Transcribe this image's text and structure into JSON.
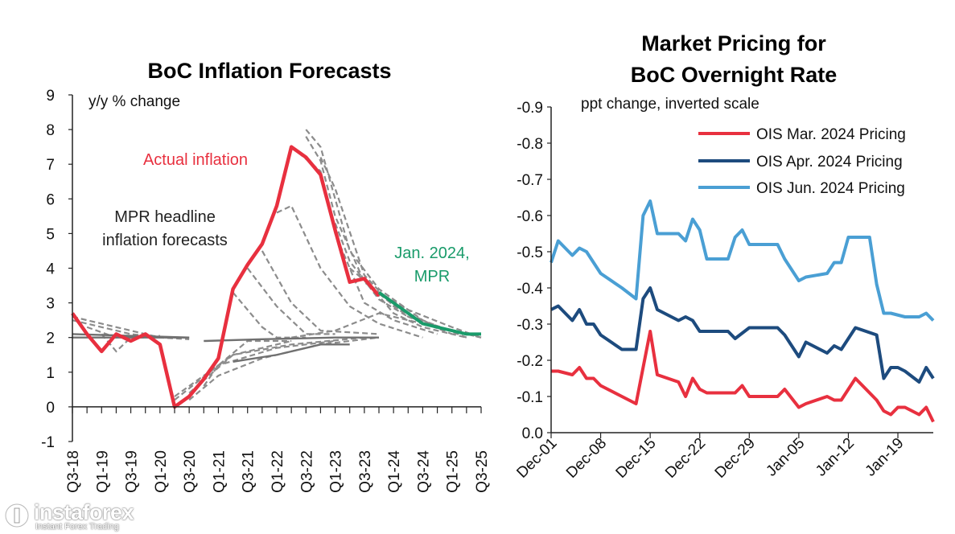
{
  "left_chart_data": {
    "type": "line",
    "title": "BoC Inflation Forecasts",
    "ylabel": "y/y % change",
    "ylim": [
      -1,
      9
    ],
    "yticks": [
      -1,
      0,
      1,
      2,
      3,
      4,
      5,
      6,
      7,
      8,
      9
    ],
    "x_labels": [
      "Q3-18",
      "Q1-19",
      "Q3-19",
      "Q1-20",
      "Q3-20",
      "Q1-21",
      "Q3-21",
      "Q1-22",
      "Q3-22",
      "Q1-23",
      "Q3-23",
      "Q1-24",
      "Q3-24",
      "Q1-25",
      "Q3-25"
    ],
    "annotations": {
      "actual": "Actual inflation",
      "mpr_line1": "MPR headline",
      "mpr_line2": "inflation forecasts",
      "jan_line1": "Jan. 2024,",
      "jan_line2": "MPR"
    },
    "colors": {
      "actual": "#e8303f",
      "jan_mpr": "#199b6a",
      "forecasts": "#8c8c8c",
      "flat": "#707070"
    },
    "actual_inflation": [
      [
        0,
        2.7
      ],
      [
        1,
        2.1
      ],
      [
        2,
        1.6
      ],
      [
        3,
        2.1
      ],
      [
        4,
        1.9
      ],
      [
        5,
        2.1
      ],
      [
        6,
        1.8
      ],
      [
        7,
        0.0
      ],
      [
        8,
        0.3
      ],
      [
        9,
        0.8
      ],
      [
        10,
        1.4
      ],
      [
        11,
        3.4
      ],
      [
        12,
        4.1
      ],
      [
        13,
        4.7
      ],
      [
        14,
        5.8
      ],
      [
        15,
        7.5
      ],
      [
        16,
        7.2
      ],
      [
        17,
        6.7
      ],
      [
        18,
        5.1
      ],
      [
        19,
        3.6
      ],
      [
        20,
        3.7
      ],
      [
        21,
        3.2
      ]
    ],
    "jan_2024_mpr": [
      [
        21,
        3.3
      ],
      [
        22,
        3.0
      ],
      [
        23,
        2.7
      ],
      [
        24,
        2.4
      ],
      [
        25,
        2.3
      ],
      [
        26,
        2.2
      ],
      [
        27,
        2.1
      ],
      [
        28,
        2.1
      ]
    ],
    "mpr_forecasts": [
      [
        [
          0,
          2.6
        ],
        [
          2,
          2.4
        ],
        [
          4,
          2.2
        ],
        [
          6,
          2.0
        ],
        [
          8,
          1.95
        ]
      ],
      [
        [
          0,
          2.5
        ],
        [
          2,
          2.3
        ],
        [
          4,
          2.1
        ],
        [
          6,
          2.0
        ]
      ],
      [
        [
          1,
          2.3
        ],
        [
          3,
          2.0
        ],
        [
          5,
          2.0
        ],
        [
          8,
          2.0
        ]
      ],
      [
        [
          2,
          2.1
        ],
        [
          3,
          1.6
        ],
        [
          4,
          2.0
        ],
        [
          6,
          2.05
        ]
      ],
      [
        [
          7,
          0.3
        ],
        [
          9,
          0.9
        ],
        [
          11,
          1.5
        ],
        [
          15,
          1.9
        ]
      ],
      [
        [
          7,
          0.2
        ],
        [
          10,
          1.2
        ],
        [
          14,
          1.7
        ],
        [
          18,
          1.9
        ]
      ],
      [
        [
          8,
          0.2
        ],
        [
          10,
          0.9
        ],
        [
          13,
          1.4
        ],
        [
          17,
          1.8
        ],
        [
          21,
          2.0
        ]
      ],
      [
        [
          8,
          0.4
        ],
        [
          11,
          1.5
        ],
        [
          15,
          1.8
        ],
        [
          20,
          2.0
        ]
      ],
      [
        [
          9,
          0.6
        ],
        [
          10,
          1.2
        ],
        [
          12,
          1.9
        ],
        [
          15,
          1.9
        ]
      ],
      [
        [
          11,
          3.3
        ],
        [
          13,
          2.3
        ],
        [
          14,
          2.0
        ],
        [
          16,
          2.0
        ]
      ],
      [
        [
          12,
          4.0
        ],
        [
          14,
          2.9
        ],
        [
          16,
          2.1
        ],
        [
          18,
          2.1
        ]
      ],
      [
        [
          13,
          4.5
        ],
        [
          15,
          3.0
        ],
        [
          17,
          2.2
        ],
        [
          21,
          2.1
        ]
      ],
      [
        [
          14,
          5.6
        ],
        [
          15,
          5.8
        ],
        [
          17,
          4.0
        ],
        [
          19,
          2.9
        ],
        [
          21,
          2.4
        ],
        [
          24,
          2.0
        ]
      ],
      [
        [
          15,
          7.5
        ],
        [
          17,
          6.8
        ],
        [
          18,
          5.0
        ],
        [
          20,
          3.0
        ],
        [
          22,
          2.5
        ],
        [
          25,
          2.1
        ]
      ],
      [
        [
          16,
          7.8
        ],
        [
          17,
          7.1
        ],
        [
          18,
          5.5
        ],
        [
          20,
          3.6
        ],
        [
          23,
          2.6
        ],
        [
          26,
          2.1
        ]
      ],
      [
        [
          16,
          8.0
        ],
        [
          17,
          7.5
        ],
        [
          19,
          4.5
        ],
        [
          21,
          3.4
        ],
        [
          24,
          2.5
        ],
        [
          27,
          2.0
        ]
      ],
      [
        [
          17,
          7.2
        ],
        [
          18,
          6.3
        ],
        [
          20,
          3.8
        ],
        [
          22,
          2.9
        ],
        [
          25,
          2.3
        ],
        [
          28,
          2.0
        ]
      ],
      [
        [
          18,
          5.3
        ],
        [
          19,
          4.2
        ],
        [
          21,
          3.1
        ],
        [
          23,
          2.6
        ],
        [
          26,
          2.2
        ],
        [
          28,
          2.0
        ]
      ],
      [
        [
          19,
          4.0
        ],
        [
          21,
          3.3
        ],
        [
          23,
          2.8
        ],
        [
          26,
          2.3
        ],
        [
          28,
          2.0
        ]
      ],
      [
        [
          20,
          3.7
        ],
        [
          22,
          2.7
        ],
        [
          24,
          2.3
        ],
        [
          27,
          2.0
        ]
      ],
      [
        [
          15,
          2.0
        ],
        [
          18,
          2.2
        ],
        [
          21,
          2.7
        ],
        [
          24,
          2.4
        ],
        [
          27,
          2.1
        ]
      ]
    ],
    "flat_forecasts": [
      [
        [
          0,
          2.0
        ],
        [
          4,
          2.0
        ],
        [
          8,
          2.0
        ]
      ],
      [
        [
          0,
          2.1
        ],
        [
          4,
          2.05
        ],
        [
          8,
          2.0
        ]
      ],
      [
        [
          9,
          1.9
        ],
        [
          13,
          1.95
        ],
        [
          18,
          2.0
        ],
        [
          21,
          2.0
        ]
      ],
      [
        [
          11,
          1.3
        ],
        [
          14,
          1.5
        ],
        [
          17,
          1.8
        ],
        [
          19,
          1.8
        ]
      ]
    ]
  },
  "right_chart_data": {
    "type": "line",
    "title_line1": "Market Pricing for",
    "title_line2": "BoC Overnight Rate",
    "ylabel": "ppt change, inverted scale",
    "ylim": [
      -0.9,
      0.0
    ],
    "inverted": true,
    "yticks": [
      "-0.9",
      "-0.8",
      "-0.7",
      "-0.6",
      "-0.5",
      "-0.4",
      "-0.3",
      "-0.2",
      "-0.1",
      "0.0"
    ],
    "x_labels": [
      {
        "label": "Dec-01",
        "day": 0
      },
      {
        "label": "Dec-08",
        "day": 7
      },
      {
        "label": "Dec-15",
        "day": 14
      },
      {
        "label": "Dec-22",
        "day": 21
      },
      {
        "label": "Dec-29",
        "day": 28
      },
      {
        "label": "Jan-05",
        "day": 35
      },
      {
        "label": "Jan-12",
        "day": 42
      },
      {
        "label": "Jan-19",
        "day": 49
      }
    ],
    "x_range_days": [
      0,
      54
    ],
    "series": [
      {
        "name": "OIS Mar. 2024 Pricing",
        "color": "#e8303f",
        "points": [
          [
            0,
            -0.17
          ],
          [
            1,
            -0.17
          ],
          [
            3,
            -0.16
          ],
          [
            4,
            -0.18
          ],
          [
            5,
            -0.15
          ],
          [
            6,
            -0.15
          ],
          [
            7,
            -0.13
          ],
          [
            10,
            -0.1
          ],
          [
            12,
            -0.08
          ],
          [
            14,
            -0.28
          ],
          [
            15,
            -0.16
          ],
          [
            18,
            -0.14
          ],
          [
            19,
            -0.1
          ],
          [
            20,
            -0.15
          ],
          [
            21,
            -0.12
          ],
          [
            22,
            -0.11
          ],
          [
            26,
            -0.11
          ],
          [
            27,
            -0.13
          ],
          [
            28,
            -0.1
          ],
          [
            32,
            -0.1
          ],
          [
            33,
            -0.12
          ],
          [
            35,
            -0.07
          ],
          [
            36,
            -0.08
          ],
          [
            39,
            -0.1
          ],
          [
            40,
            -0.09
          ],
          [
            41,
            -0.09
          ],
          [
            43,
            -0.15
          ],
          [
            46,
            -0.09
          ],
          [
            47,
            -0.06
          ],
          [
            48,
            -0.05
          ],
          [
            49,
            -0.07
          ],
          [
            50,
            -0.07
          ],
          [
            52,
            -0.05
          ],
          [
            53,
            -0.07
          ],
          [
            54,
            -0.03
          ]
        ]
      },
      {
        "name": "OIS Apr. 2024 Pricing",
        "color": "#1d4b7e",
        "points": [
          [
            0,
            -0.34
          ],
          [
            1,
            -0.35
          ],
          [
            3,
            -0.31
          ],
          [
            4,
            -0.34
          ],
          [
            5,
            -0.3
          ],
          [
            6,
            -0.3
          ],
          [
            7,
            -0.27
          ],
          [
            10,
            -0.23
          ],
          [
            12,
            -0.23
          ],
          [
            13,
            -0.37
          ],
          [
            14,
            -0.4
          ],
          [
            15,
            -0.34
          ],
          [
            18,
            -0.31
          ],
          [
            19,
            -0.32
          ],
          [
            20,
            -0.31
          ],
          [
            21,
            -0.28
          ],
          [
            25,
            -0.28
          ],
          [
            26,
            -0.26
          ],
          [
            28,
            -0.29
          ],
          [
            32,
            -0.29
          ],
          [
            33,
            -0.27
          ],
          [
            35,
            -0.21
          ],
          [
            36,
            -0.25
          ],
          [
            39,
            -0.22
          ],
          [
            40,
            -0.24
          ],
          [
            41,
            -0.23
          ],
          [
            43,
            -0.29
          ],
          [
            46,
            -0.27
          ],
          [
            47,
            -0.15
          ],
          [
            48,
            -0.18
          ],
          [
            49,
            -0.18
          ],
          [
            50,
            -0.17
          ],
          [
            52,
            -0.14
          ],
          [
            53,
            -0.18
          ],
          [
            54,
            -0.15
          ]
        ]
      },
      {
        "name": "OIS Jun. 2024 Pricing",
        "color": "#4a9fd4",
        "points": [
          [
            0,
            -0.47
          ],
          [
            1,
            -0.53
          ],
          [
            3,
            -0.49
          ],
          [
            4,
            -0.51
          ],
          [
            5,
            -0.5
          ],
          [
            6,
            -0.47
          ],
          [
            7,
            -0.44
          ],
          [
            10,
            -0.4
          ],
          [
            12,
            -0.37
          ],
          [
            13,
            -0.6
          ],
          [
            14,
            -0.64
          ],
          [
            15,
            -0.55
          ],
          [
            18,
            -0.55
          ],
          [
            19,
            -0.53
          ],
          [
            20,
            -0.59
          ],
          [
            21,
            -0.56
          ],
          [
            22,
            -0.48
          ],
          [
            25,
            -0.48
          ],
          [
            26,
            -0.54
          ],
          [
            27,
            -0.56
          ],
          [
            28,
            -0.52
          ],
          [
            32,
            -0.52
          ],
          [
            33,
            -0.48
          ],
          [
            35,
            -0.42
          ],
          [
            36,
            -0.43
          ],
          [
            39,
            -0.44
          ],
          [
            40,
            -0.47
          ],
          [
            41,
            -0.47
          ],
          [
            42,
            -0.54
          ],
          [
            44,
            -0.54
          ],
          [
            45,
            -0.54
          ],
          [
            46,
            -0.41
          ],
          [
            47,
            -0.33
          ],
          [
            48,
            -0.33
          ],
          [
            50,
            -0.32
          ],
          [
            52,
            -0.32
          ],
          [
            53,
            -0.33
          ],
          [
            54,
            -0.31
          ]
        ]
      }
    ]
  },
  "watermark": {
    "brand": "instaforex",
    "tagline": "Instant Forex Trading"
  }
}
